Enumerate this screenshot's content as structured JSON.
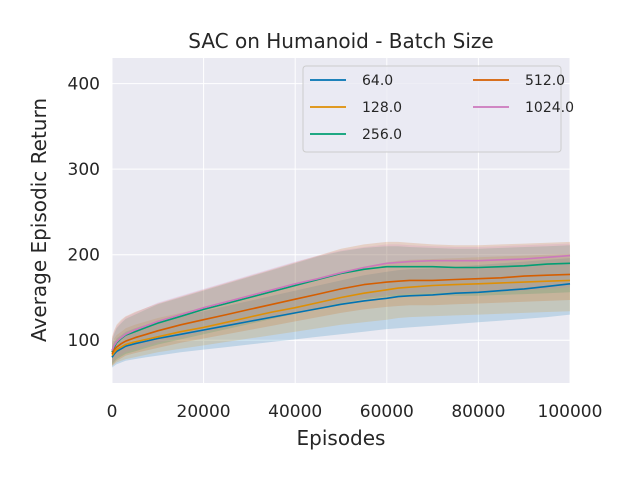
{
  "chart_data": {
    "type": "line",
    "title": "SAC on Humanoid - Batch Size",
    "xlabel": "Episodes",
    "ylabel": "Average Episodic Return",
    "xlim": [
      0,
      100000
    ],
    "ylim": [
      50,
      430
    ],
    "xticks": [
      0,
      20000,
      40000,
      60000,
      80000,
      100000
    ],
    "xtick_labels": [
      "0",
      "20000",
      "40000",
      "60000",
      "80000",
      "100000"
    ],
    "yticks": [
      100,
      200,
      300,
      400
    ],
    "ytick_labels": [
      "100",
      "200",
      "300",
      "400"
    ],
    "grid": true,
    "legend_position": "top-right",
    "legend_columns": 2,
    "colors": {
      "background": "#eaeaf2",
      "grid": "#ffffff",
      "text": "#262626"
    },
    "x": [
      0,
      500,
      1000,
      2000,
      3000,
      5000,
      7500,
      10000,
      15000,
      20000,
      25000,
      30000,
      35000,
      40000,
      45000,
      50000,
      55000,
      60000,
      62500,
      65000,
      70000,
      75000,
      80000,
      85000,
      90000,
      95000,
      100000
    ],
    "series": [
      {
        "name": "64.0",
        "color": "#0173b2",
        "values": [
          80,
          84,
          87,
          90,
          93,
          96,
          99,
          102,
          107,
          112,
          117,
          122,
          127,
          132,
          137,
          142,
          146,
          149,
          151,
          152,
          153,
          155,
          156,
          158,
          160,
          163,
          166
        ],
        "lower": [
          68,
          70,
          72,
          74,
          76,
          78,
          80,
          82,
          86,
          89,
          92,
          95,
          98,
          101,
          104,
          107,
          110,
          113,
          114,
          115,
          117,
          119,
          121,
          123,
          125,
          127,
          130
        ],
        "upper": [
          92,
          98,
          102,
          106,
          110,
          114,
          118,
          122,
          128,
          134,
          140,
          146,
          152,
          158,
          164,
          170,
          176,
          180,
          182,
          183,
          184,
          186,
          188,
          190,
          192,
          194,
          196
        ]
      },
      {
        "name": "128.0",
        "color": "#de8f05",
        "values": [
          82,
          86,
          89,
          92,
          95,
          98,
          101,
          104,
          110,
          115,
          121,
          127,
          133,
          138,
          144,
          150,
          155,
          159,
          161,
          162,
          164,
          165,
          166,
          167,
          168,
          169,
          170
        ],
        "lower": [
          70,
          72,
          74,
          76,
          78,
          80,
          83,
          86,
          90,
          94,
          98,
          102,
          106,
          110,
          114,
          118,
          121,
          124,
          126,
          127,
          128,
          129,
          130,
          131,
          132,
          133,
          134
        ],
        "upper": [
          96,
          102,
          106,
          110,
          114,
          118,
          122,
          126,
          132,
          138,
          145,
          152,
          159,
          166,
          173,
          180,
          186,
          191,
          193,
          194,
          195,
          196,
          197,
          198,
          199,
          200,
          201
        ]
      },
      {
        "name": "256.0",
        "color": "#029e73",
        "values": [
          86,
          92,
          97,
          102,
          106,
          110,
          115,
          120,
          128,
          136,
          143,
          150,
          157,
          164,
          171,
          178,
          183,
          186,
          186,
          186,
          186,
          185,
          185,
          186,
          187,
          189,
          190
        ],
        "lower": [
          72,
          75,
          78,
          81,
          84,
          87,
          91,
          95,
          101,
          107,
          113,
          119,
          125,
          131,
          137,
          143,
          148,
          151,
          152,
          152,
          153,
          152,
          152,
          153,
          154,
          155,
          156
        ],
        "upper": [
          100,
          108,
          114,
          120,
          125,
          130,
          136,
          142,
          150,
          158,
          166,
          174,
          182,
          190,
          198,
          204,
          208,
          210,
          210,
          209,
          208,
          207,
          207,
          208,
          209,
          210,
          211
        ]
      },
      {
        "name": "512.0",
        "color": "#d55e00",
        "values": [
          84,
          89,
          92,
          96,
          99,
          103,
          107,
          111,
          118,
          124,
          130,
          136,
          142,
          148,
          154,
          160,
          165,
          168,
          169,
          170,
          170,
          171,
          172,
          173,
          175,
          176,
          177
        ],
        "lower": [
          70,
          73,
          76,
          79,
          82,
          85,
          88,
          91,
          97,
          102,
          107,
          112,
          117,
          122,
          127,
          132,
          136,
          139,
          140,
          141,
          141,
          142,
          143,
          144,
          145,
          146,
          147
        ],
        "upper": [
          104,
          112,
          118,
          124,
          128,
          133,
          138,
          143,
          151,
          159,
          167,
          175,
          183,
          191,
          199,
          207,
          212,
          215,
          215,
          214,
          212,
          211,
          211,
          212,
          213,
          214,
          215
        ]
      },
      {
        "name": "1024.0",
        "color": "#cc78bc",
        "values": [
          88,
          94,
          98,
          103,
          107,
          112,
          117,
          122,
          130,
          138,
          145,
          152,
          159,
          166,
          172,
          179,
          185,
          190,
          191,
          192,
          193,
          193,
          193,
          194,
          195,
          197,
          199
        ],
        "lower": [
          74,
          77,
          80,
          83,
          86,
          89,
          93,
          97,
          103,
          109,
          115,
          121,
          127,
          133,
          138,
          144,
          149,
          153,
          154,
          155,
          156,
          156,
          156,
          157,
          158,
          160,
          162
        ],
        "upper": [
          102,
          110,
          116,
          122,
          127,
          132,
          138,
          144,
          152,
          160,
          168,
          176,
          184,
          192,
          199,
          205,
          209,
          212,
          212,
          211,
          210,
          209,
          209,
          210,
          211,
          212,
          213
        ]
      }
    ]
  }
}
